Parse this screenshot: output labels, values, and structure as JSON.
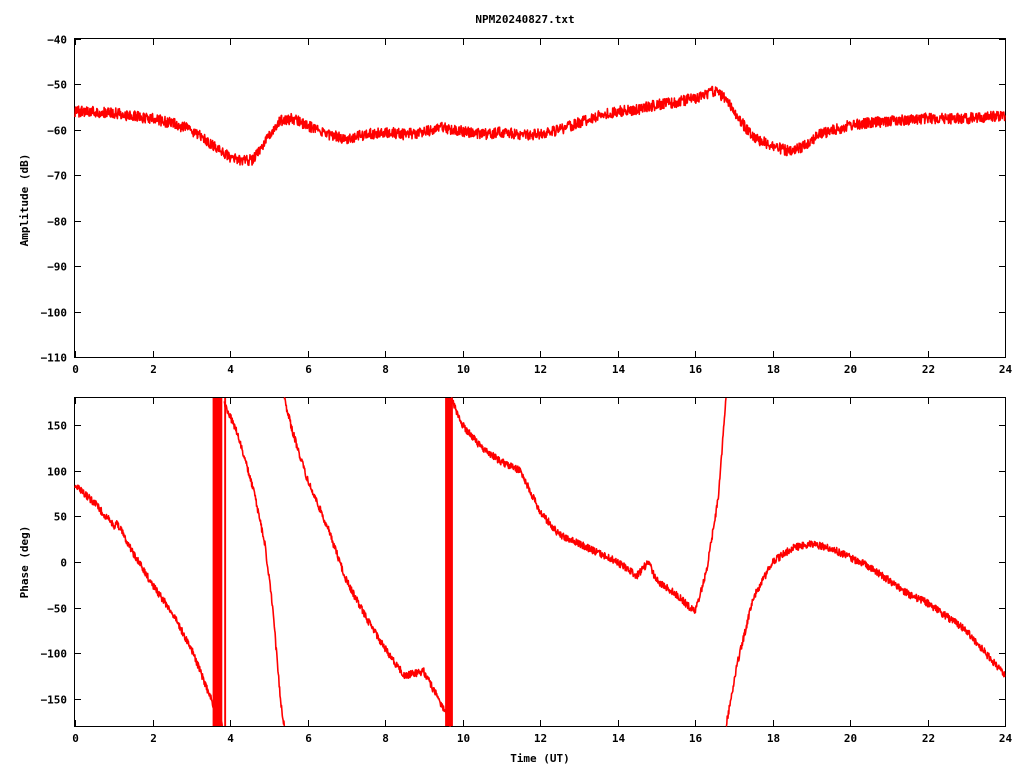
{
  "title": "NPM20240827.txt",
  "colors": {
    "series": "#ff0000",
    "axis": "#000000",
    "background": "#ffffff"
  },
  "chart_data": [
    {
      "type": "line",
      "ylabel": "Amplitude (dB)",
      "xlabel": "",
      "xlim": [
        0,
        24
      ],
      "ylim": [
        -110,
        -40
      ],
      "grid": false,
      "legend": "none",
      "xticks": [
        0,
        2,
        4,
        6,
        8,
        10,
        12,
        14,
        16,
        18,
        20,
        22,
        24
      ],
      "yticks": [
        -110,
        -100,
        -90,
        -80,
        -70,
        -60,
        -50,
        -40
      ],
      "ytick_labels": [
        "−110",
        "−100",
        "−90",
        "−80",
        "−70",
        "−60",
        "−50",
        "−40"
      ],
      "series": [
        {
          "noise": 1.2,
          "points": [
            [
              0,
              -56
            ],
            [
              0.5,
              -56
            ],
            [
              1.0,
              -56.3
            ],
            [
              1.5,
              -57
            ],
            [
              2.0,
              -57.5
            ],
            [
              2.5,
              -58.5
            ],
            [
              3.0,
              -60
            ],
            [
              3.5,
              -63
            ],
            [
              4.0,
              -66
            ],
            [
              4.3,
              -67
            ],
            [
              4.6,
              -66.5
            ],
            [
              4.8,
              -64
            ],
            [
              5.0,
              -61
            ],
            [
              5.3,
              -58
            ],
            [
              5.6,
              -57.5
            ],
            [
              6.0,
              -59
            ],
            [
              6.5,
              -61
            ],
            [
              7.0,
              -62
            ],
            [
              7.5,
              -61
            ],
            [
              8.0,
              -60.5
            ],
            [
              8.5,
              -61
            ],
            [
              9.0,
              -60.5
            ],
            [
              9.5,
              -59.5
            ],
            [
              9.8,
              -60
            ],
            [
              10.5,
              -61
            ],
            [
              11.0,
              -60.5
            ],
            [
              11.5,
              -61
            ],
            [
              12.0,
              -61
            ],
            [
              12.5,
              -60
            ],
            [
              13.0,
              -58.5
            ],
            [
              13.5,
              -57
            ],
            [
              14.0,
              -56
            ],
            [
              14.5,
              -55.5
            ],
            [
              15.0,
              -54.5
            ],
            [
              15.5,
              -54
            ],
            [
              16.0,
              -53
            ],
            [
              16.5,
              -51.5
            ],
            [
              16.8,
              -53
            ],
            [
              17.0,
              -56
            ],
            [
              17.3,
              -59.5
            ],
            [
              17.6,
              -62
            ],
            [
              18.0,
              -63.5
            ],
            [
              18.5,
              -65
            ],
            [
              18.8,
              -63.5
            ],
            [
              19.2,
              -61
            ],
            [
              19.6,
              -60
            ],
            [
              20.0,
              -59
            ],
            [
              20.5,
              -58.5
            ],
            [
              21.0,
              -58
            ],
            [
              21.5,
              -57.8
            ],
            [
              22.0,
              -57.5
            ],
            [
              22.5,
              -57.5
            ],
            [
              23.0,
              -57.5
            ],
            [
              23.5,
              -57.2
            ],
            [
              24.0,
              -56.8
            ]
          ]
        }
      ]
    },
    {
      "type": "line",
      "ylabel": "Phase (deg)",
      "xlabel": "Time (UT)",
      "xlim": [
        0,
        24
      ],
      "ylim": [
        -180,
        180
      ],
      "grid": false,
      "legend": "none",
      "xticks": [
        0,
        2,
        4,
        6,
        8,
        10,
        12,
        14,
        16,
        18,
        20,
        22,
        24
      ],
      "yticks": [
        -150,
        -100,
        -50,
        0,
        50,
        100,
        150
      ],
      "ytick_labels": [
        "−150",
        "−100",
        "−50",
        "0",
        "50",
        "100",
        "150"
      ],
      "series": [
        {
          "noise": 4,
          "segments": [
            [
              [
                0,
                85
              ],
              [
                0.5,
                65
              ],
              [
                1.0,
                40
              ],
              [
                1.1,
                42
              ],
              [
                1.5,
                10
              ],
              [
                2.0,
                -25
              ],
              [
                2.5,
                -55
              ],
              [
                3.0,
                -95
              ],
              [
                3.6,
                -160
              ],
              [
                3.8,
                -180
              ]
            ],
            [
              [
                3.85,
                175
              ],
              [
                4.2,
                140
              ],
              [
                4.6,
                80
              ],
              [
                4.9,
                20
              ],
              [
                5.1,
                -50
              ],
              [
                5.3,
                -150
              ],
              [
                5.4,
                -180
              ]
            ],
            [
              [
                5.4,
                180
              ],
              [
                5.6,
                145
              ],
              [
                6.0,
                90
              ],
              [
                6.5,
                40
              ],
              [
                7.0,
                -20
              ],
              [
                7.5,
                -60
              ],
              [
                8.0,
                -95
              ],
              [
                8.5,
                -125
              ],
              [
                9.0,
                -120
              ],
              [
                9.5,
                -160
              ],
              [
                9.7,
                -180
              ]
            ],
            [
              [
                9.7,
                180
              ],
              [
                10.0,
                150
              ],
              [
                10.5,
                125
              ],
              [
                11.0,
                110
              ],
              [
                11.5,
                100
              ],
              [
                12.0,
                55
              ],
              [
                12.5,
                30
              ],
              [
                13.0,
                20
              ],
              [
                13.5,
                10
              ],
              [
                14.0,
                0
              ],
              [
                14.5,
                -15
              ],
              [
                14.8,
                0
              ],
              [
                15.0,
                -20
              ],
              [
                15.5,
                -35
              ],
              [
                16.0,
                -55
              ],
              [
                16.3,
                -10
              ],
              [
                16.6,
                70
              ],
              [
                16.8,
                180
              ]
            ],
            [
              [
                16.8,
                -180
              ],
              [
                17.1,
                -110
              ],
              [
                17.5,
                -40
              ],
              [
                18.0,
                0
              ],
              [
                18.5,
                15
              ],
              [
                19.0,
                20
              ],
              [
                19.5,
                15
              ],
              [
                20.0,
                5
              ],
              [
                20.5,
                -5
              ],
              [
                21.0,
                -20
              ],
              [
                21.5,
                -35
              ],
              [
                22.0,
                -45
              ],
              [
                22.5,
                -60
              ],
              [
                23.0,
                -75
              ],
              [
                23.5,
                -100
              ],
              [
                24.0,
                -125
              ]
            ]
          ],
          "bands": [
            [
              3.55,
              3.8
            ],
            [
              3.85,
              3.9
            ],
            [
              9.55,
              9.75
            ]
          ]
        }
      ]
    }
  ]
}
